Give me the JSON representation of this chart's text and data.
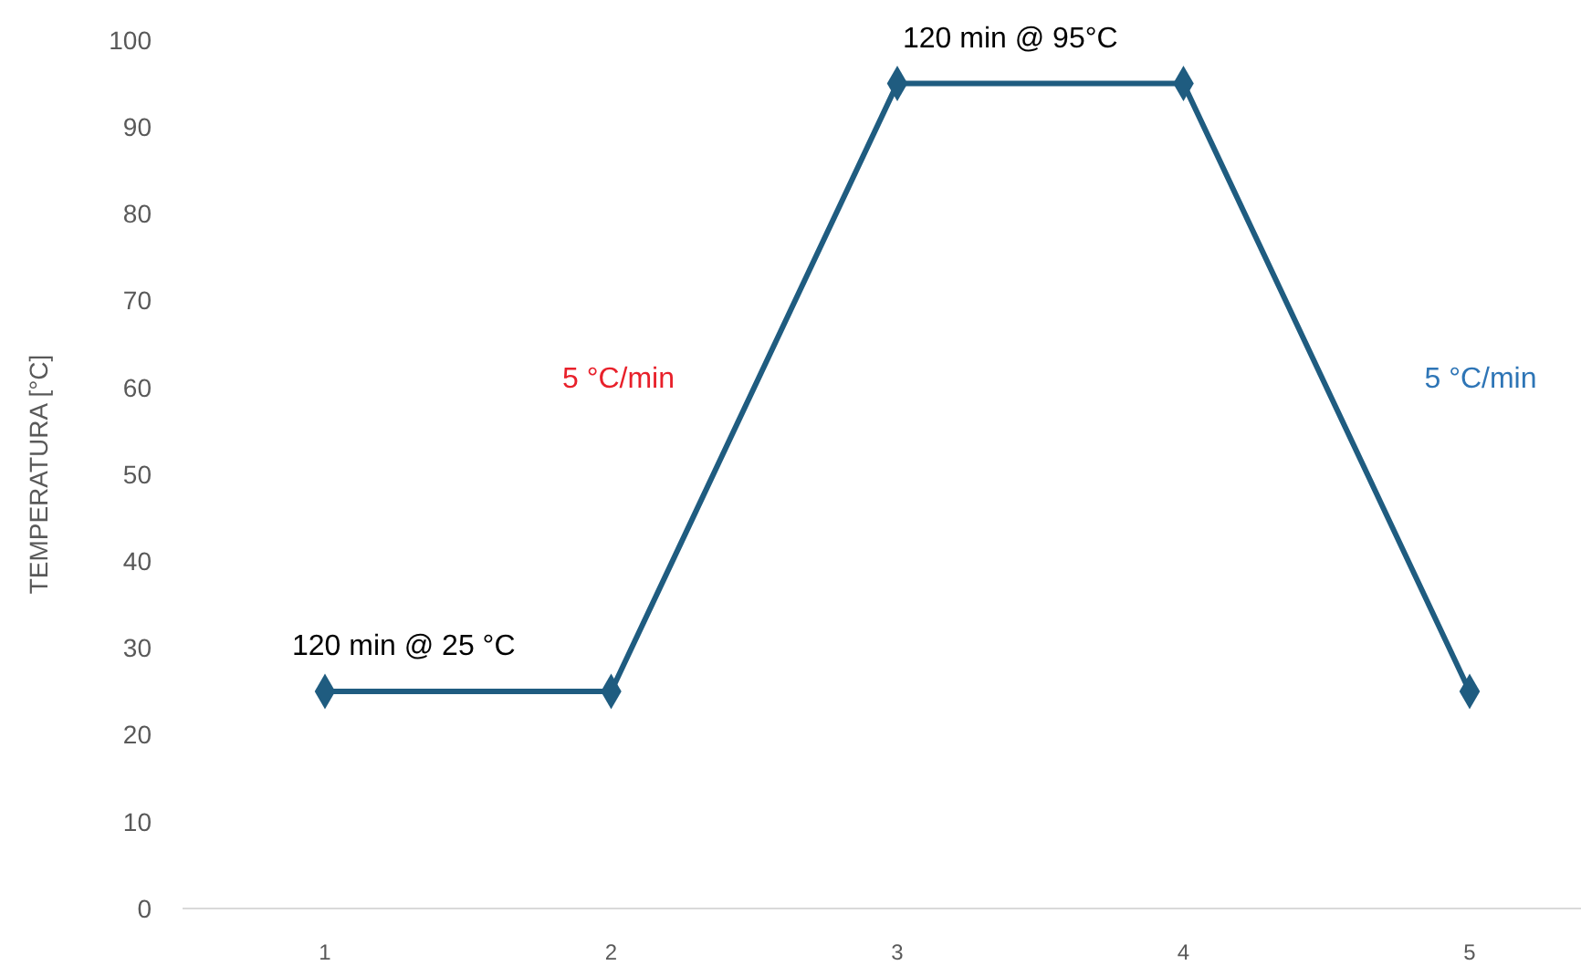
{
  "chart_data": {
    "type": "line",
    "ylabel": "TEMPERATURA [°C]",
    "categories": [
      "1",
      "2",
      "3",
      "4",
      "5"
    ],
    "series": [
      {
        "color": "#1f5c80",
        "values": [
          25,
          25,
          95,
          95,
          25
        ]
      }
    ],
    "ylim": [
      0,
      100
    ],
    "yticks": [
      0,
      10,
      20,
      30,
      40,
      50,
      60,
      70,
      80,
      90,
      100
    ],
    "marker": "diamond",
    "line_style": "solid",
    "grid": false,
    "annotations": [
      {
        "text": "120 min @ 25 °C",
        "x": "1",
        "y": 25
      },
      "5 °C/min",
      {
        "text": "120 min @ 95°C",
        "x": "3",
        "y": 95
      },
      "5 °C/min"
    ]
  }
}
